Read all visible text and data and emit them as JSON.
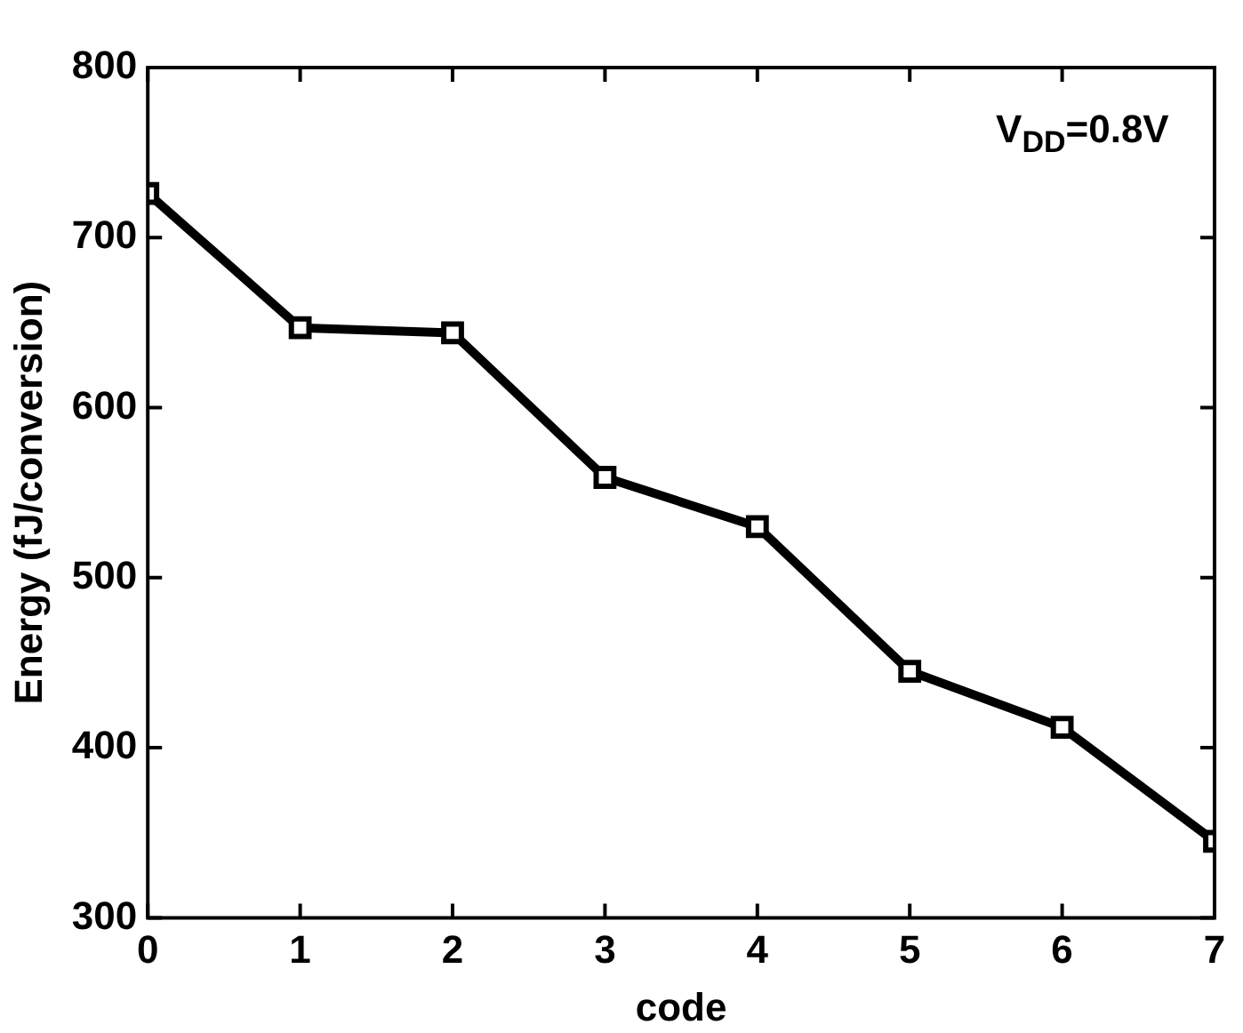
{
  "chart_data": {
    "type": "line",
    "xlabel": "code",
    "ylabel": "Energy (fJ/conversion)",
    "x": [
      0,
      1,
      2,
      3,
      4,
      5,
      6,
      7
    ],
    "series": [
      {
        "color": "#000000",
        "values": [
          726,
          647,
          644,
          559,
          530,
          445,
          412,
          345
        ]
      }
    ],
    "xlim": [
      0,
      7
    ],
    "xticks": [
      0,
      1,
      2,
      3,
      4,
      5,
      6,
      7
    ],
    "ylim": [
      300,
      800
    ],
    "yticks": [
      300,
      400,
      500,
      600,
      700,
      800
    ],
    "marker": "square",
    "line_style": "solid",
    "legend": false,
    "annotations": [
      "V$_{DD}$=0.8V"
    ]
  }
}
